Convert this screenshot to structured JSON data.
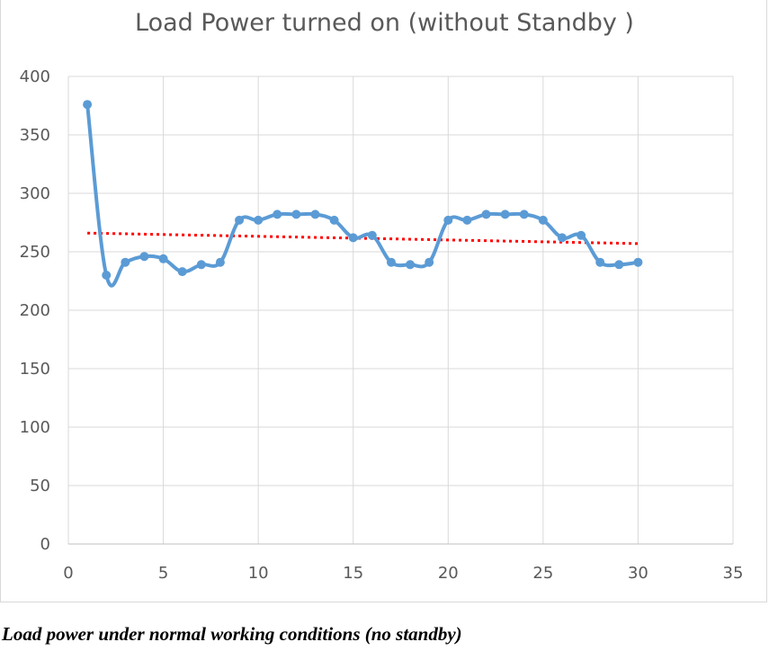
{
  "caption": "Load power under normal working conditions (no standby)",
  "chart_data": {
    "type": "scatter",
    "title": "Load Power turned on (without Standby )",
    "xlabel": "",
    "ylabel": "",
    "xlim": [
      0,
      35
    ],
    "ylim": [
      0,
      400
    ],
    "x_ticks": [
      "0",
      "5",
      "10",
      "15",
      "20",
      "25",
      "30",
      "35"
    ],
    "y_ticks": [
      "0",
      "50",
      "100",
      "150",
      "200",
      "250",
      "300",
      "350",
      "400"
    ],
    "grid": true,
    "legend": "none",
    "series": [
      {
        "style": "smoothed line with markers",
        "color": "#5b9bd5",
        "x": [
          1,
          2,
          3,
          4,
          5,
          6,
          7,
          8,
          9,
          10,
          11,
          12,
          13,
          14,
          15,
          16,
          17,
          18,
          19,
          20,
          21,
          22,
          23,
          24,
          25,
          26,
          27,
          28,
          29,
          30
        ],
        "y": [
          376,
          230,
          241,
          246,
          244,
          233,
          239,
          241,
          277,
          277,
          282,
          282,
          282,
          277,
          262,
          264,
          241,
          239,
          241,
          277,
          277,
          282,
          282,
          282,
          277,
          262,
          264,
          241,
          239,
          241
        ]
      }
    ],
    "trendline": {
      "style": "dotted linear",
      "color": "#ff0000",
      "x": [
        1,
        30
      ],
      "y": [
        266,
        257
      ]
    }
  }
}
